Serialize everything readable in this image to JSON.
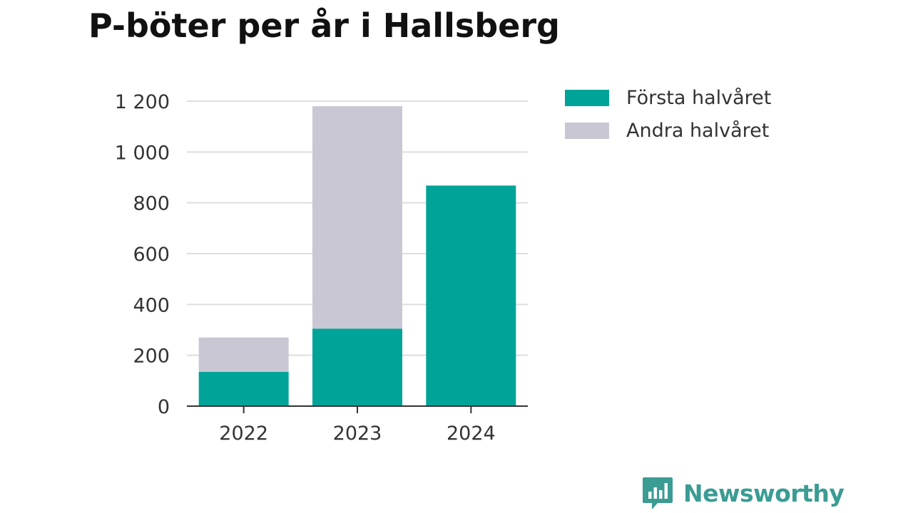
{
  "title": "P-böter per år i Hallsberg",
  "brand": {
    "name": "Newsworthy",
    "color": "#3a9c93",
    "icon": "bar-chart-speech-bubble-icon"
  },
  "chart_data": {
    "type": "bar",
    "stacked": true,
    "categories": [
      "2022",
      "2023",
      "2024"
    ],
    "series": [
      {
        "name": "Första halvåret",
        "color": "#00a398",
        "values": [
          135,
          305,
          868
        ]
      },
      {
        "name": "Andra halvåret",
        "color": "#c8c7d3",
        "values": [
          135,
          875,
          0
        ]
      }
    ],
    "ylim": [
      0,
      1200
    ],
    "yticks": [
      0,
      200,
      400,
      600,
      800,
      1000,
      1200
    ],
    "ytick_labels": [
      "0",
      "200",
      "400",
      "600",
      "800",
      "1 000",
      "1 200"
    ],
    "xlabel": "",
    "ylabel": "",
    "grid": true,
    "legend_position": "right"
  }
}
